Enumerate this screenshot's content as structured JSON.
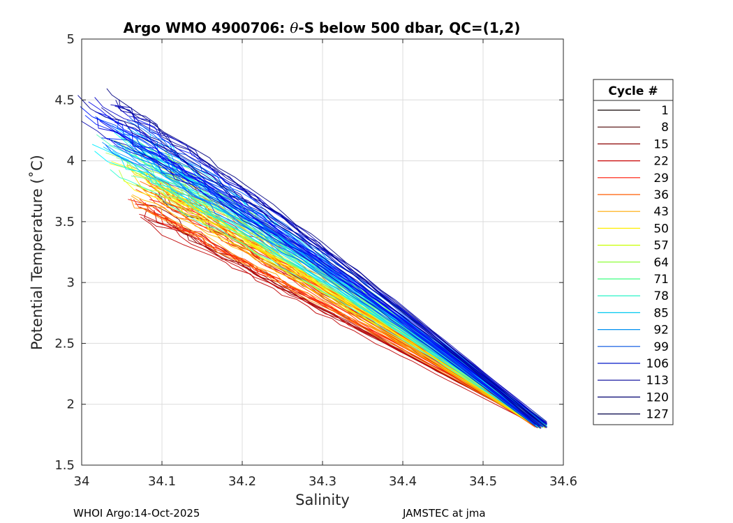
{
  "chart_data": {
    "type": "line",
    "title": "Argo WMO 4900706: θ-S below 500 dbar,  QC=(1,2)",
    "title_prefix": "Argo WMO 4900706: ",
    "title_theta": "θ",
    "title_suffix": "-S below 500 dbar,  QC=(1,2)",
    "xlabel": "Salinity",
    "ylabel": "Potential Temperature (˚C)",
    "xlim": [
      34.0,
      34.6
    ],
    "ylim": [
      1.5,
      5.0
    ],
    "xticks": [
      34.0,
      34.1,
      34.2,
      34.3,
      34.4,
      34.5,
      34.6
    ],
    "xtick_labels": [
      "34",
      "34.1",
      "34.2",
      "34.3",
      "34.4",
      "34.5",
      "34.6"
    ],
    "yticks": [
      1.5,
      2.0,
      2.5,
      3.0,
      3.5,
      4.0,
      4.5,
      5.0
    ],
    "ytick_labels": [
      "1.5",
      "2",
      "2.5",
      "3",
      "3.5",
      "4",
      "4.5",
      "5"
    ],
    "grid": true,
    "legend_title": "Cycle #",
    "legend_position": "right-outside",
    "colormap": "jet",
    "total_cycles": 127,
    "series": [
      {
        "name": "1",
        "color": "#0d0000"
      },
      {
        "name": "8",
        "color": "#4a0000"
      },
      {
        "name": "15",
        "color": "#8c0000"
      },
      {
        "name": "22",
        "color": "#c80000"
      },
      {
        "name": "29",
        "color": "#ff1400"
      },
      {
        "name": "36",
        "color": "#ff5c00"
      },
      {
        "name": "43",
        "color": "#ffa800"
      },
      {
        "name": "50",
        "color": "#ffee00"
      },
      {
        "name": "57",
        "color": "#c8ff00"
      },
      {
        "name": "64",
        "color": "#80ff20"
      },
      {
        "name": "71",
        "color": "#3cff80"
      },
      {
        "name": "78",
        "color": "#10f0c0"
      },
      {
        "name": "85",
        "color": "#00c8f0"
      },
      {
        "name": "92",
        "color": "#0090f0"
      },
      {
        "name": "99",
        "color": "#0050e0"
      },
      {
        "name": "106",
        "color": "#0018c8"
      },
      {
        "name": "113",
        "color": "#000098"
      },
      {
        "name": "120",
        "color": "#000070"
      },
      {
        "name": "127",
        "color": "#000048"
      }
    ],
    "profile_shape": {
      "deep_end": {
        "salinity": 34.58,
        "theta": 1.8
      },
      "trend_points": [
        {
          "salinity": 34.4,
          "theta": 2.72
        },
        {
          "salinity": 34.3,
          "theta": 3.18
        },
        {
          "salinity": 34.2,
          "theta": 3.6
        }
      ],
      "early_cycles_top": {
        "salinity": 34.1,
        "theta": 3.6
      },
      "late_cycles_top": {
        "salinity": 34.02,
        "theta": 4.45
      }
    }
  },
  "footer": {
    "left": "WHOI Argo:14-Oct-2025",
    "right": "JAMSTEC at jma"
  }
}
